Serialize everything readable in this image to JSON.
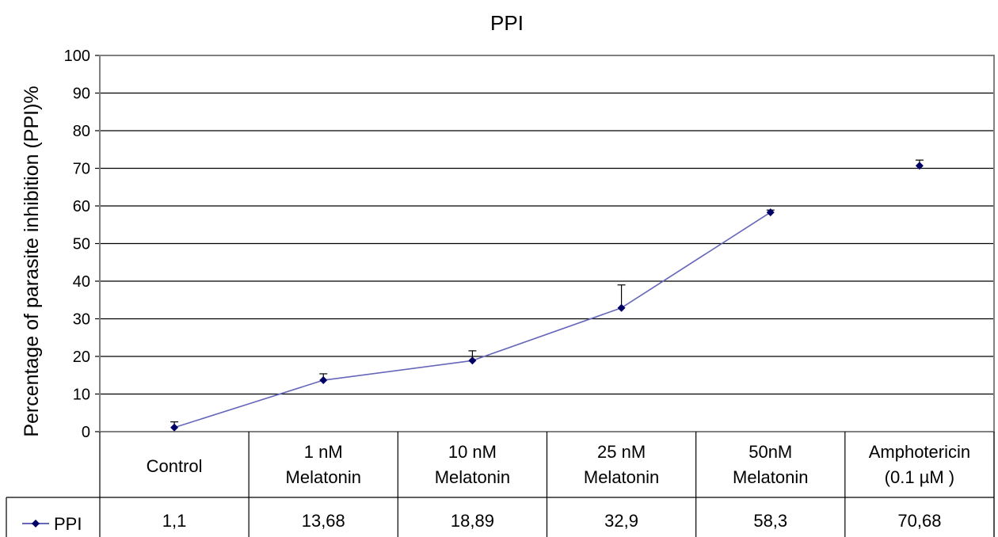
{
  "chart_data": {
    "type": "line",
    "title": "PPI",
    "ylabel": "Percentage of parasite inhibition (PPI)%",
    "xlabel": "",
    "ylim": [
      0,
      100
    ],
    "yticks": [
      0,
      10,
      20,
      30,
      40,
      50,
      60,
      70,
      80,
      90,
      100
    ],
    "grid": true,
    "legend_position": "data-table",
    "categories": [
      [
        "Control"
      ],
      [
        "1 nM",
        "Melatonin"
      ],
      [
        "10 nM",
        "Melatonin"
      ],
      [
        "25 nM",
        "Melatonin"
      ],
      [
        "50nM",
        "Melatonin"
      ],
      [
        "Amphotericin",
        "(0.1 µM )"
      ]
    ],
    "series": [
      {
        "name": "PPI",
        "color": "#6666bb",
        "marker_color": "#000066",
        "values": [
          1.1,
          13.68,
          18.89,
          32.9,
          58.3,
          70.68
        ],
        "error_plus": [
          1.5,
          1.7,
          2.6,
          6.1,
          0.6,
          1.5
        ],
        "table_labels": [
          "1,1",
          "13,68",
          "18,89",
          "32,9",
          "58,3",
          "70,68"
        ],
        "connected": [
          true,
          true,
          true,
          true,
          false
        ]
      }
    ]
  }
}
